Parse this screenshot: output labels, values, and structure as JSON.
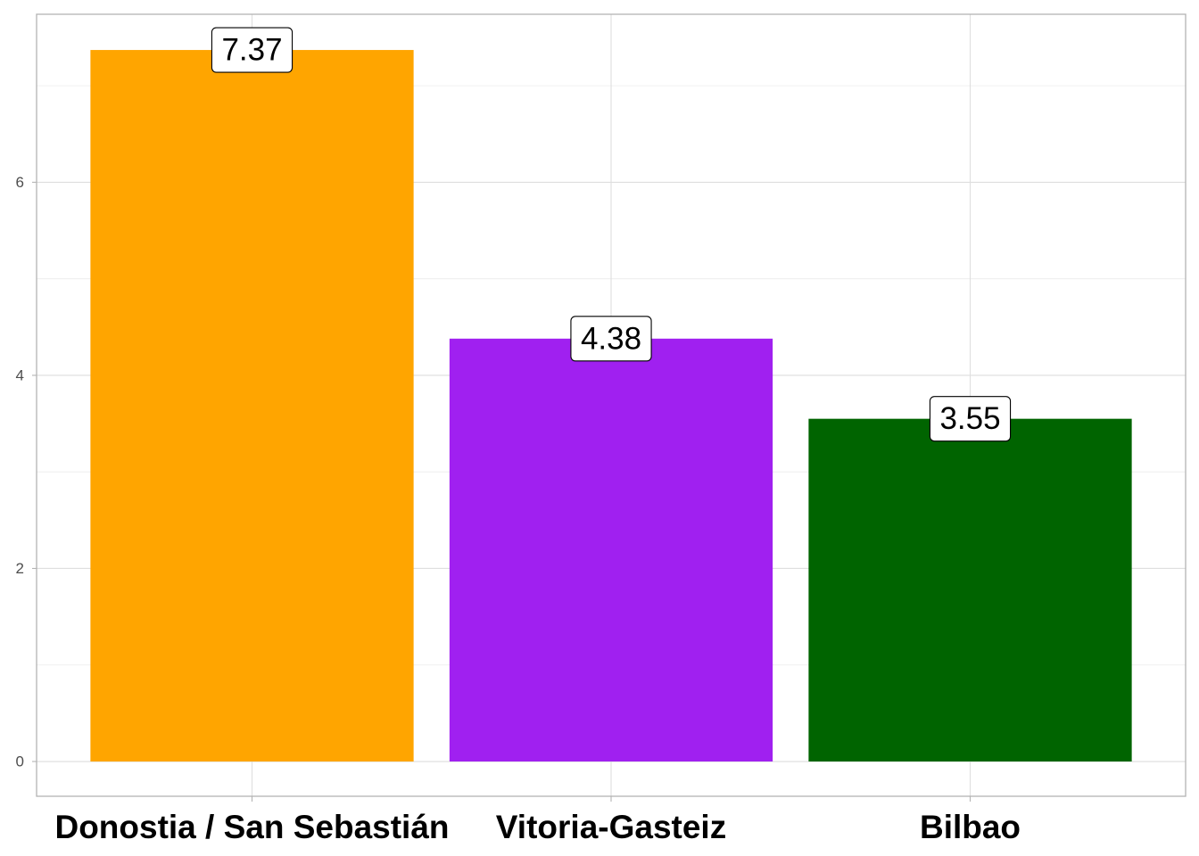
{
  "chart_data": {
    "type": "bar",
    "categories": [
      "Donostia / San Sebastián",
      "Vitoria-Gasteiz",
      "Bilbao"
    ],
    "values": [
      7.37,
      4.38,
      3.55
    ],
    "data_labels": [
      "7.37",
      "4.38",
      "3.55"
    ],
    "colors": [
      "#FFA500",
      "#A020F0",
      "#006400"
    ],
    "title": "",
    "xlabel": "",
    "ylabel": "",
    "ylim": [
      -0.36,
      7.74
    ],
    "yticks": [
      0,
      2,
      4,
      6
    ],
    "ytick_labels": [
      "0",
      "2",
      "4",
      "6"
    ],
    "grid": true,
    "legend": "none"
  }
}
